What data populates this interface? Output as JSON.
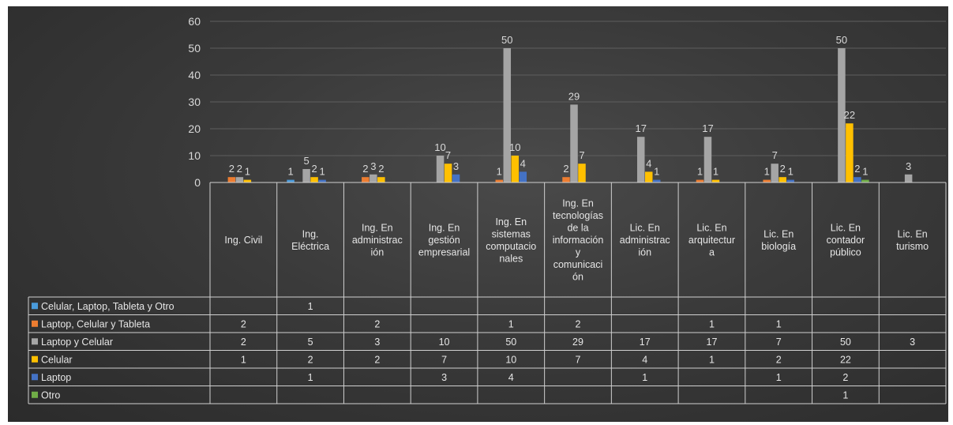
{
  "chart_data": {
    "type": "bar",
    "title": "",
    "xlabel": "",
    "ylabel": "",
    "ylim": [
      0,
      60
    ],
    "yticks": [
      0,
      10,
      20,
      30,
      40,
      50,
      60
    ],
    "grid": true,
    "legend": "data table",
    "categories": [
      "Ing. Civil",
      "Ing. Eléctrica",
      "Ing. En administración",
      "Ing. En gestión empresarial",
      "Ing. En sistemas computacionales",
      "Ing. En tecnologías de la información y comunicación",
      "Lic. En administración",
      "Lic. En arquitectura",
      "Lic. En biología",
      "Lic. En contador público",
      "Lic. En turismo"
    ],
    "category_lines": [
      [
        "Ing. Civil"
      ],
      [
        "Ing.",
        "Eléctrica"
      ],
      [
        "Ing. En",
        "administrac",
        "ión"
      ],
      [
        "Ing. En",
        "gestión",
        "empresarial"
      ],
      [
        "Ing. En",
        "sistemas",
        "computacio",
        "nales"
      ],
      [
        "Ing. En",
        "tecnologías",
        "de la",
        "información",
        "y",
        "comunicaci",
        "ón"
      ],
      [
        "Lic. En",
        "administrac",
        "ión"
      ],
      [
        "Lic. En",
        "arquitectur",
        "a"
      ],
      [
        "Lic. En",
        "biología"
      ],
      [
        "Lic. En",
        "contador",
        "público"
      ],
      [
        "Lic. En",
        "turismo"
      ]
    ],
    "series": [
      {
        "name": "Celular, Laptop, Tableta y Otro",
        "color": "#4a9bdb",
        "values": [
          null,
          1,
          null,
          null,
          null,
          null,
          null,
          null,
          null,
          null,
          null
        ]
      },
      {
        "name": "Laptop, Celular y Tableta",
        "color": "#ed7d31",
        "values": [
          2,
          null,
          2,
          null,
          1,
          2,
          null,
          1,
          1,
          null,
          null
        ]
      },
      {
        "name": "Laptop y Celular",
        "color": "#a5a5a5",
        "values": [
          2,
          5,
          3,
          10,
          50,
          29,
          17,
          17,
          7,
          50,
          3
        ]
      },
      {
        "name": "Celular",
        "color": "#ffc000",
        "values": [
          1,
          2,
          2,
          7,
          10,
          7,
          4,
          1,
          2,
          22,
          null
        ]
      },
      {
        "name": "Laptop",
        "color": "#4472c4",
        "values": [
          null,
          1,
          null,
          3,
          4,
          null,
          1,
          null,
          1,
          2,
          null
        ]
      },
      {
        "name": "Otro",
        "color": "#70ad47",
        "values": [
          null,
          null,
          null,
          null,
          null,
          null,
          null,
          null,
          null,
          1,
          null
        ]
      }
    ]
  }
}
